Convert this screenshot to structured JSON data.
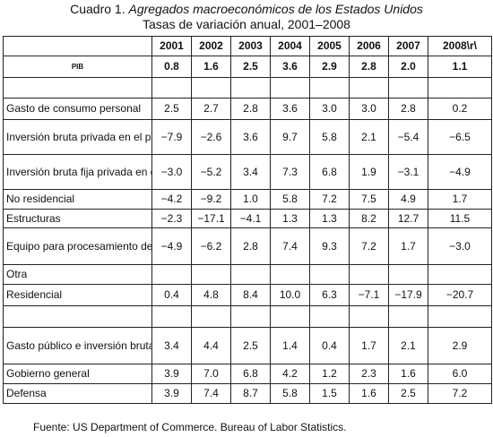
{
  "title": {
    "prefix": "Cuadro 1.",
    "name": "Agregados macroeconómicos de los Estados Unidos",
    "subtitle": "Tasas de variación anual, 2001–2008"
  },
  "table": {
    "columns": [
      "",
      "2001",
      "2002",
      "2003",
      "2004",
      "2005",
      "2006",
      "2007",
      "2008\\r\\"
    ],
    "pib": {
      "label": "PIB",
      "values": [
        "0.8",
        "1.6",
        "2.5",
        "3.6",
        "2.9",
        "2.8",
        "2.0",
        "1.1"
      ]
    },
    "rows": [
      {
        "label": "",
        "values": [
          "",
          "",
          "",
          "",
          "",
          "",
          "",
          ""
        ]
      },
      {
        "label": "Gasto de consumo personal",
        "values": [
          "2.5",
          "2.7",
          "2.8",
          "3.6",
          "3.0",
          "3.0",
          "2.8",
          "0.2"
        ]
      },
      {
        "label": "Inversión bruta privada en el país",
        "values": [
          "−7.9",
          "−2.6",
          "3.6",
          "9.7",
          "5.8",
          "2.1",
          "−5.4",
          "−6.5"
        ]
      },
      {
        "label": "Inversión bruta fija privada en el país",
        "values": [
          "−3.0",
          "−5.2",
          "3.4",
          "7.3",
          "6.8",
          "1.9",
          "−3.1",
          "−4.9"
        ]
      },
      {
        "label": "No residencial",
        "values": [
          "−4.2",
          "−9.2",
          "1.0",
          "5.8",
          "7.2",
          "7.5",
          "4.9",
          "1.7"
        ]
      },
      {
        "label": "Estructuras",
        "values": [
          "−2.3",
          "−17.1",
          "−4.1",
          "1.3",
          "1.3",
          "8.2",
          "12.7",
          "11.5"
        ]
      },
      {
        "label": "Equipo para procesamiento de información y software",
        "values": [
          "−4.9",
          "−6.2",
          "2.8",
          "7.4",
          "9.3",
          "7.2",
          "1.7",
          "−3.0"
        ]
      },
      {
        "label": "Otra",
        "values": [
          "",
          "",
          "",
          "",
          "",
          "",
          "",
          ""
        ]
      },
      {
        "label": "Residencial",
        "values": [
          "0.4",
          "4.8",
          "8.4",
          "10.0",
          "6.3",
          "−7.1",
          "−17.9",
          "−20.7"
        ]
      },
      {
        "label": "",
        "values": [
          "",
          "",
          "",
          "",
          "",
          "",
          "",
          ""
        ]
      },
      {
        "label": "Gasto público e inversión bruta pública",
        "values": [
          "3.4",
          "4.4",
          "2.5",
          "1.4",
          "0.4",
          "1.7",
          "2.1",
          "2.9"
        ]
      },
      {
        "label": "Gobierno general",
        "values": [
          "3.9",
          "7.0",
          "6.8",
          "4.2",
          "1.2",
          "2.3",
          "1.6",
          "6.0"
        ]
      },
      {
        "label": "Defensa",
        "values": [
          "3.9",
          "7.4",
          "8.7",
          "5.8",
          "1.5",
          "1.6",
          "2.5",
          "7.2"
        ]
      }
    ]
  },
  "source": "Fuente: US Department of Commerce. Bureau of Labor Statistics."
}
